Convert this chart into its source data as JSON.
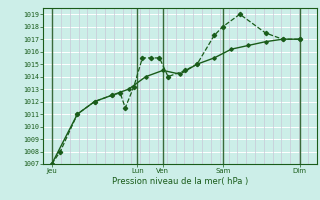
{
  "xlabel": "Pression niveau de la mer( hPa )",
  "bg_color": "#cceee8",
  "grid_color_v": "#c8c8d8",
  "grid_color_h": "#ffffff",
  "line_color": "#1a5c1a",
  "sep_color": "#3a6a3a",
  "ylim": [
    1007,
    1019.5
  ],
  "yticks": [
    1007,
    1008,
    1009,
    1010,
    1011,
    1012,
    1013,
    1014,
    1015,
    1016,
    1017,
    1018,
    1019
  ],
  "xlim": [
    0,
    16.0
  ],
  "xtick_labels": [
    "Jeu",
    "Lun",
    "Ven",
    "Sam",
    "Dim"
  ],
  "xtick_positions": [
    0.5,
    5.5,
    7.0,
    10.5,
    15.0
  ],
  "day_sep_x": [
    0.5,
    5.5,
    7.0,
    10.5,
    15.0
  ],
  "num_v_minor": 32,
  "line1_x": [
    0.5,
    1.0,
    2.0,
    3.0,
    4.0,
    4.5,
    4.8,
    5.3,
    5.8,
    6.3,
    6.8,
    7.3,
    8.3,
    9.0,
    10.0,
    10.5,
    11.5,
    13.0,
    14.0,
    15.0
  ],
  "line1_y": [
    1007.0,
    1008.0,
    1011.0,
    1012.0,
    1012.5,
    1012.7,
    1011.5,
    1013.2,
    1015.5,
    1015.5,
    1015.5,
    1014.0,
    1014.5,
    1015.0,
    1017.3,
    1018.0,
    1019.0,
    1017.5,
    1017.0,
    1017.0
  ],
  "line2_x": [
    0.5,
    2.0,
    3.0,
    4.0,
    5.0,
    6.0,
    7.0,
    8.0,
    9.0,
    10.0,
    11.0,
    12.0,
    13.0,
    14.0,
    15.0
  ],
  "line2_y": [
    1007.0,
    1011.0,
    1012.0,
    1012.5,
    1013.0,
    1014.0,
    1014.5,
    1014.2,
    1015.0,
    1015.5,
    1016.2,
    1016.5,
    1016.8,
    1017.0,
    1017.0
  ]
}
